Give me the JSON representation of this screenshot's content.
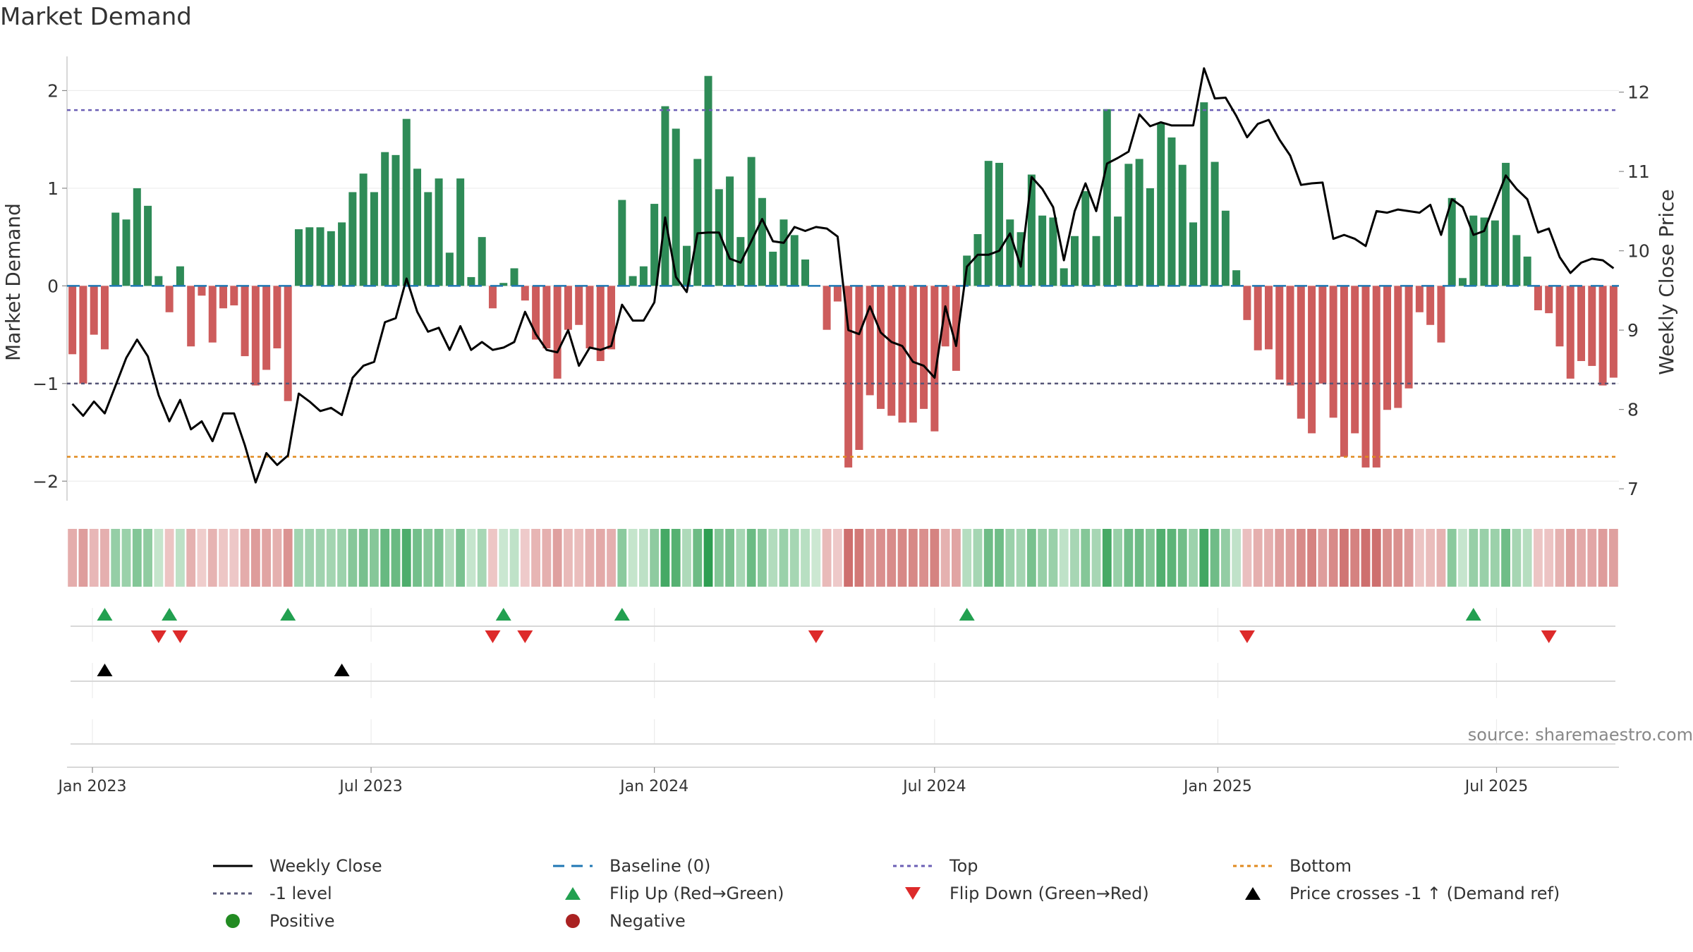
{
  "title": "Market Demand",
  "source": "source: sharemaestro.com",
  "colors": {
    "pos_bar": "#2e8b57",
    "neg_bar": "#cd5c5c",
    "price": "#000000",
    "baseline": "#1f77b4",
    "top": "#6b5fb5",
    "minus1": "#555577",
    "bottom": "#e08a1e",
    "flip_up": "#22a050",
    "flip_down": "#dd2a2a",
    "cross": "#000000",
    "positive_dot": "#228b22",
    "negative_dot": "#aa2222"
  },
  "chart_data": {
    "type": "bar",
    "title": "Market Demand",
    "ylabel": "Market Demand",
    "y2label": "Weekly Close Price",
    "ylim": [
      -2.2,
      2.35
    ],
    "y2lim": [
      6.85,
      12.45
    ],
    "yticks": [
      -2,
      -1,
      0,
      1,
      2
    ],
    "y2ticks": [
      7,
      8,
      9,
      10,
      11,
      12
    ],
    "reference_lines": {
      "top": 1.8,
      "minus1": -1,
      "bottom": -1.75
    },
    "start_date": "2022-12-19",
    "xticks": [
      {
        "label": "Jan 2023",
        "date": "2023-01-01"
      },
      {
        "label": "Jul 2023",
        "date": "2023-07-01"
      },
      {
        "label": "Jan 2024",
        "date": "2024-01-01"
      },
      {
        "label": "Jul 2024",
        "date": "2024-07-01"
      },
      {
        "label": "Jan 2025",
        "date": "2025-01-01"
      },
      {
        "label": "Jul 2025",
        "date": "2025-07-01"
      }
    ],
    "demand": [
      -0.7,
      -1.0,
      -0.5,
      -0.65,
      0.75,
      0.68,
      1.0,
      0.82,
      0.1,
      -0.27,
      0.2,
      -0.62,
      -0.1,
      -0.58,
      -0.23,
      -0.2,
      -0.72,
      -1.02,
      -0.86,
      -0.64,
      -1.18,
      0.58,
      0.6,
      0.6,
      0.56,
      0.65,
      0.96,
      1.15,
      0.96,
      1.37,
      1.34,
      1.71,
      1.2,
      0.96,
      1.1,
      0.34,
      1.1,
      0.09,
      0.5,
      -0.23,
      0.03,
      0.18,
      -0.15,
      -0.55,
      -0.64,
      -0.95,
      -0.45,
      -0.4,
      -0.64,
      -0.77,
      -0.65,
      0.88,
      0.1,
      0.2,
      0.84,
      1.84,
      1.61,
      0.41,
      1.3,
      2.15,
      0.99,
      1.12,
      0.5,
      1.32,
      0.9,
      0.35,
      0.68,
      0.52,
      0.27,
      0.0,
      -0.45,
      -0.16,
      -1.86,
      -1.68,
      -1.12,
      -1.26,
      -1.33,
      -1.4,
      -1.4,
      -1.26,
      -1.49,
      -0.62,
      -0.87,
      0.31,
      0.53,
      1.28,
      1.26,
      0.68,
      0.55,
      1.14,
      0.72,
      0.7,
      0.18,
      0.51,
      0.97,
      0.51,
      1.81,
      0.71,
      1.25,
      1.3,
      1.0,
      1.67,
      1.52,
      1.24,
      0.65,
      1.88,
      1.27,
      0.77,
      0.16,
      -0.35,
      -0.66,
      -0.65,
      -0.96,
      -1.02,
      -1.36,
      -1.51,
      -1.0,
      -1.35,
      -1.75,
      -1.51,
      -1.86,
      -1.86,
      -1.27,
      -1.25,
      -1.05,
      -0.27,
      -0.4,
      -0.58,
      0.9,
      0.08,
      0.72,
      0.7,
      0.67,
      1.26,
      0.52,
      0.3,
      -0.25,
      -0.28,
      -0.62,
      -0.95,
      -0.77,
      -0.82,
      -1.02,
      -0.94
    ],
    "price": [
      8.07,
      7.92,
      8.1,
      7.95,
      8.3,
      8.65,
      8.88,
      8.67,
      8.18,
      7.85,
      8.12,
      7.75,
      7.85,
      7.6,
      7.95,
      7.95,
      7.55,
      7.08,
      7.45,
      7.3,
      7.42,
      8.2,
      8.1,
      7.98,
      8.02,
      7.93,
      8.4,
      8.55,
      8.6,
      9.1,
      9.15,
      9.65,
      9.23,
      8.98,
      9.03,
      8.75,
      9.05,
      8.75,
      8.85,
      8.75,
      8.78,
      8.85,
      9.23,
      8.95,
      8.75,
      8.72,
      9.0,
      8.55,
      8.78,
      8.75,
      8.8,
      9.32,
      9.12,
      9.12,
      9.35,
      10.42,
      9.67,
      9.48,
      10.22,
      10.23,
      10.23,
      9.9,
      9.85,
      10.12,
      10.4,
      10.12,
      10.1,
      10.3,
      10.25,
      10.3,
      10.28,
      10.18,
      9.0,
      8.95,
      9.3,
      8.97,
      8.85,
      8.8,
      8.6,
      8.55,
      8.4,
      9.3,
      8.8,
      9.8,
      9.95,
      9.95,
      10.0,
      10.22,
      9.8,
      10.93,
      10.78,
      10.55,
      9.88,
      10.5,
      10.85,
      10.5,
      11.1,
      11.17,
      11.25,
      11.72,
      11.57,
      11.62,
      11.58,
      11.58,
      11.58,
      12.3,
      11.92,
      11.93,
      11.7,
      11.43,
      11.6,
      11.65,
      11.4,
      11.2,
      10.83,
      10.85,
      10.86,
      10.15,
      10.2,
      10.15,
      10.06,
      10.5,
      10.48,
      10.52,
      10.5,
      10.48,
      10.58,
      10.2,
      10.65,
      10.55,
      10.2,
      10.25,
      10.6,
      10.95,
      10.78,
      10.65,
      10.23,
      10.28,
      9.92,
      9.72,
      9.85,
      9.9,
      9.88,
      9.78
    ],
    "flip_up_index": [
      3,
      9,
      20,
      40,
      51,
      83,
      130
    ],
    "flip_down_index": [
      8,
      10,
      39,
      42,
      69,
      109,
      137
    ],
    "price_cross_up_index": [
      3,
      25
    ]
  },
  "legend": [
    {
      "label": "Weekly Close",
      "symbol": "solid-line",
      "color": "#000000"
    },
    {
      "label": "Baseline (0)",
      "symbol": "dash-line",
      "color": "#1f77b4"
    },
    {
      "label": "Top",
      "symbol": "dot-line",
      "color": "#6b5fb5"
    },
    {
      "label": "Bottom",
      "symbol": "dot-line",
      "color": "#e08a1e"
    },
    {
      "label": "-1 level",
      "symbol": "dot-line",
      "color": "#555577"
    },
    {
      "label": "Flip Up (Red→Green)",
      "symbol": "triangle-up",
      "color": "#22a050"
    },
    {
      "label": "Flip Down (Green→Red)",
      "symbol": "triangle-down",
      "color": "#dd2a2a"
    },
    {
      "label": "Price crosses -1 ↑ (Demand ref)",
      "symbol": "triangle-up",
      "color": "#000000"
    },
    {
      "label": "Positive",
      "symbol": "circle",
      "color": "#228b22"
    },
    {
      "label": "Negative",
      "symbol": "circle",
      "color": "#aa2222"
    }
  ]
}
